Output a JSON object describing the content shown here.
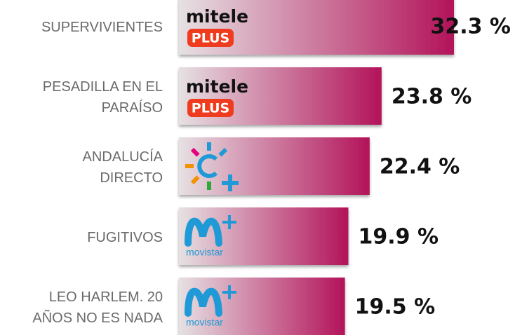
{
  "chart_data": {
    "type": "bar",
    "orientation": "horizontal",
    "categories": [
      "SUPERVIVIENTES",
      "PESADILLA EN EL\nPARAÍSO",
      "ANDALUCÍA\nDIRECTO",
      "FUGITIVOS",
      "LEO HARLEM. 20\nAÑOS NO ES NADA"
    ],
    "values": [
      32.3,
      23.8,
      22.4,
      19.9,
      19.5
    ],
    "value_labels": [
      "32.3 %",
      "23.8 %",
      "22.4 %",
      "19.9 %",
      "19.5 %"
    ],
    "logos": [
      {
        "brand": "mitele",
        "badge": "PLUS"
      },
      {
        "brand": "mitele",
        "badge": "PLUS"
      },
      null,
      {
        "brand": "movistar"
      },
      {
        "brand": "movistar"
      }
    ],
    "color_start": "#e6e1e3",
    "color": "#b3135a"
  }
}
